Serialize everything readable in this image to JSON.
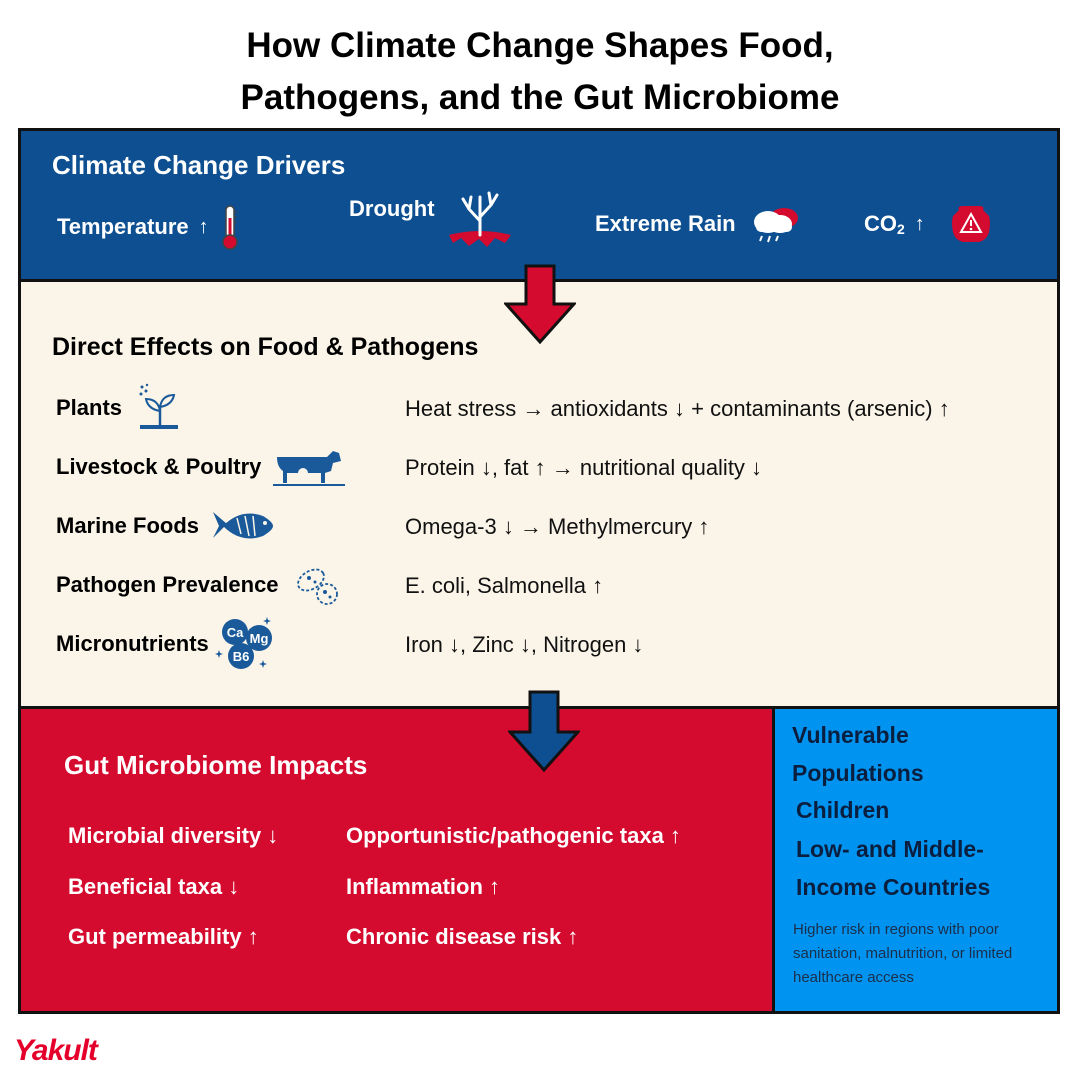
{
  "title": {
    "line1": "How Climate Change Shapes Food,",
    "line2": "Pathogens, and the Gut Microbiome"
  },
  "drivers": {
    "heading": "Climate Change Drivers",
    "items": [
      {
        "label": "Temperature",
        "arrow": "↑",
        "icon": "thermometer-icon"
      },
      {
        "label": "Drought",
        "arrow": "",
        "icon": "dead-tree-icon"
      },
      {
        "label": "Extreme Rain",
        "arrow": "",
        "icon": "rain-cloud-icon"
      },
      {
        "label": "CO",
        "subscript": "2",
        "arrow": "↑",
        "icon": "co2-warning-icon"
      }
    ]
  },
  "effects": {
    "heading": "Direct Effects on Food & Pathogens",
    "rows": [
      {
        "label": "Plants",
        "icon": "plant-sprout-icon",
        "effect": "Heat stress → antioxidants ↓ + contaminants (arsenic) ↑"
      },
      {
        "label": "Livestock & Poultry",
        "icon": "livestock-icon",
        "effect": "Protein ↓, fat ↑  → nutritional quality ↓"
      },
      {
        "label": "Marine Foods",
        "icon": "fish-icon",
        "effect": "Omega-3 ↓ → Methylmercury ↑"
      },
      {
        "label": "Pathogen Prevalence",
        "icon": "bacteria-icon",
        "effect": "E. coli, Salmonella ↑"
      },
      {
        "label": "Micronutrients",
        "icon": "minerals-icon",
        "effect": "Iron ↓, Zinc ↓, Nitrogen ↓"
      }
    ],
    "mineral_symbols": [
      "Ca",
      "Mg",
      "B6"
    ]
  },
  "gut": {
    "heading": "Gut Microbiome Impacts",
    "left": [
      "Microbial diversity ↓",
      "Beneficial taxa ↓",
      "Gut permeability ↑"
    ],
    "right": [
      "Opportunistic/pathogenic taxa ↑",
      "Inflammation ↑",
      "Chronic disease risk ↑"
    ]
  },
  "vulnerable": {
    "heading": "Vulnerable Populations",
    "items": [
      "Children",
      "Low- and Middle-Income Countries"
    ],
    "note": "Higher risk in regions with poor sanitation, malnutrition, or limited healthcare access"
  },
  "logo": "Yakult",
  "colors": {
    "navy": "#0d4f91",
    "red": "#d40a2e",
    "cream": "#fbf5e9",
    "sky": "#0094f0",
    "dark_blue": "#0a1f3f",
    "icon_blue": "#1a5a9a"
  }
}
